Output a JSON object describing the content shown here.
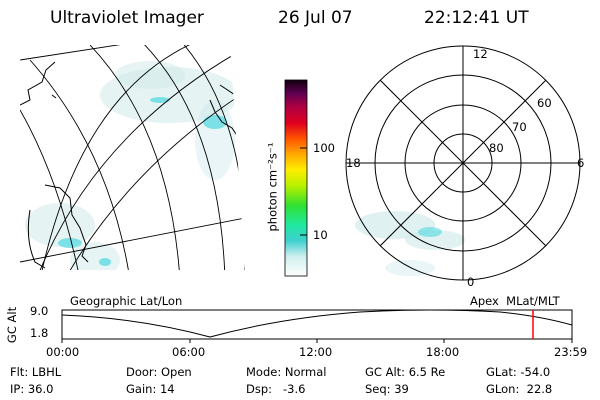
{
  "header": {
    "title": "Ultraviolet Imager",
    "date": "26 Jul 07",
    "time": "22:12:41 UT"
  },
  "colorbar": {
    "unit_label": "photon cm⁻²s⁻¹",
    "ticks": [
      "100",
      "10"
    ]
  },
  "left_map": {
    "caption": "Geographic Lat/Lon"
  },
  "right_map": {
    "caption": "Apex  MLat/MLT",
    "mlt_labels": {
      "top": "12",
      "left": "18",
      "right": "6",
      "bottom": "0"
    },
    "lat_labels": [
      "60",
      "70",
      "80"
    ]
  },
  "altitude_strip": {
    "ylabel": "GC Alt",
    "ymax": "9.0",
    "ymin": "1.8",
    "xticks": [
      "00:00",
      "06:00",
      "12:00",
      "18:00",
      "23:59"
    ],
    "marker_color": "#ff0000"
  },
  "info": {
    "flt": "Flt: LBHL",
    "ip": "IP: 36.0",
    "door": "Door: Open",
    "gain": "Gain: 14",
    "mode": "Mode: Normal",
    "dsp": "Dsp:   -3.6",
    "gcalt": "GC Alt: 6.5 Re",
    "seq": "Seq: 39",
    "glat": "GLat: -54.0",
    "glon": "GLon:  22.8"
  },
  "colors": {
    "aurora": "#4fd8e0",
    "faint": "#cfe9ea"
  }
}
